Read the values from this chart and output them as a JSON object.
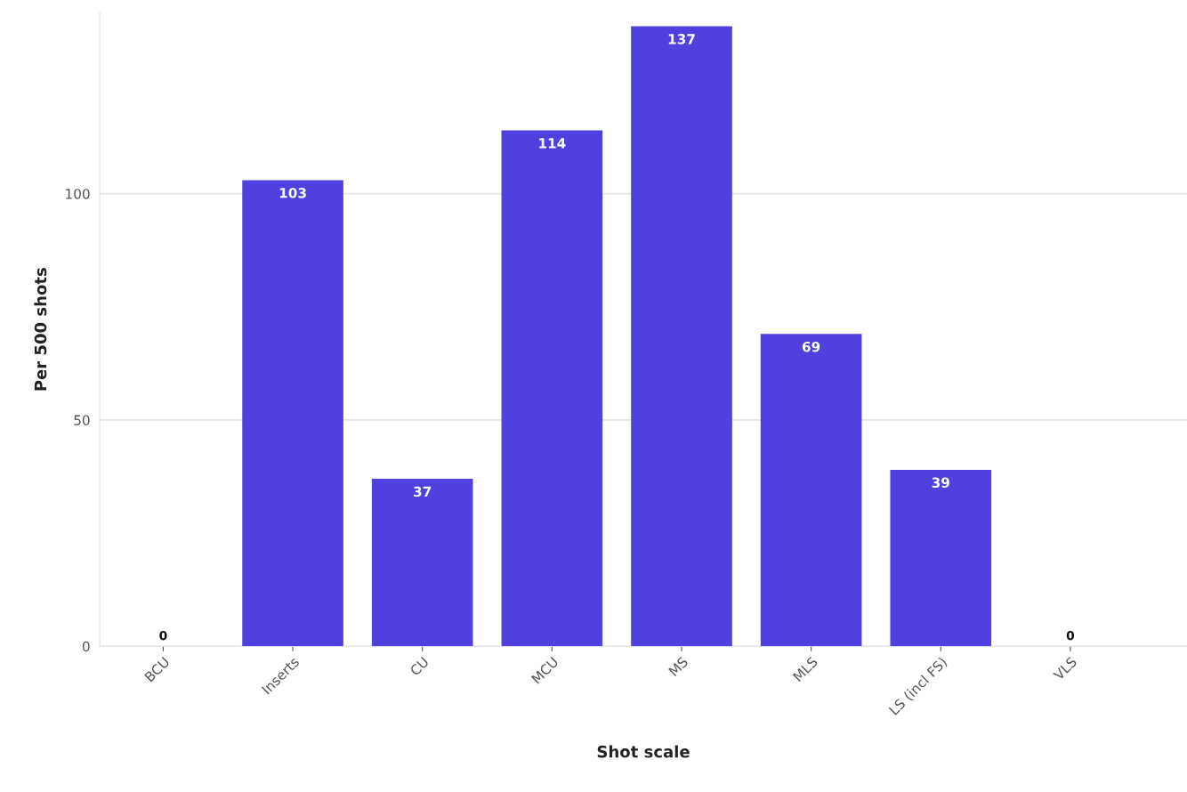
{
  "chart_data": {
    "type": "bar",
    "xlabel": "Shot scale",
    "ylabel": "Per 500 shots",
    "categories": [
      "BCU",
      "Inserts",
      "CU",
      "MCU",
      "MS",
      "MLS",
      "LS (incl FS)",
      "VLS"
    ],
    "values": [
      0,
      103,
      37,
      114,
      137,
      69,
      39,
      0
    ],
    "color": "#5040de",
    "ylim": [
      0,
      140
    ],
    "yticks": [
      0,
      50,
      100
    ],
    "grid": "y",
    "data_labels": true
  }
}
